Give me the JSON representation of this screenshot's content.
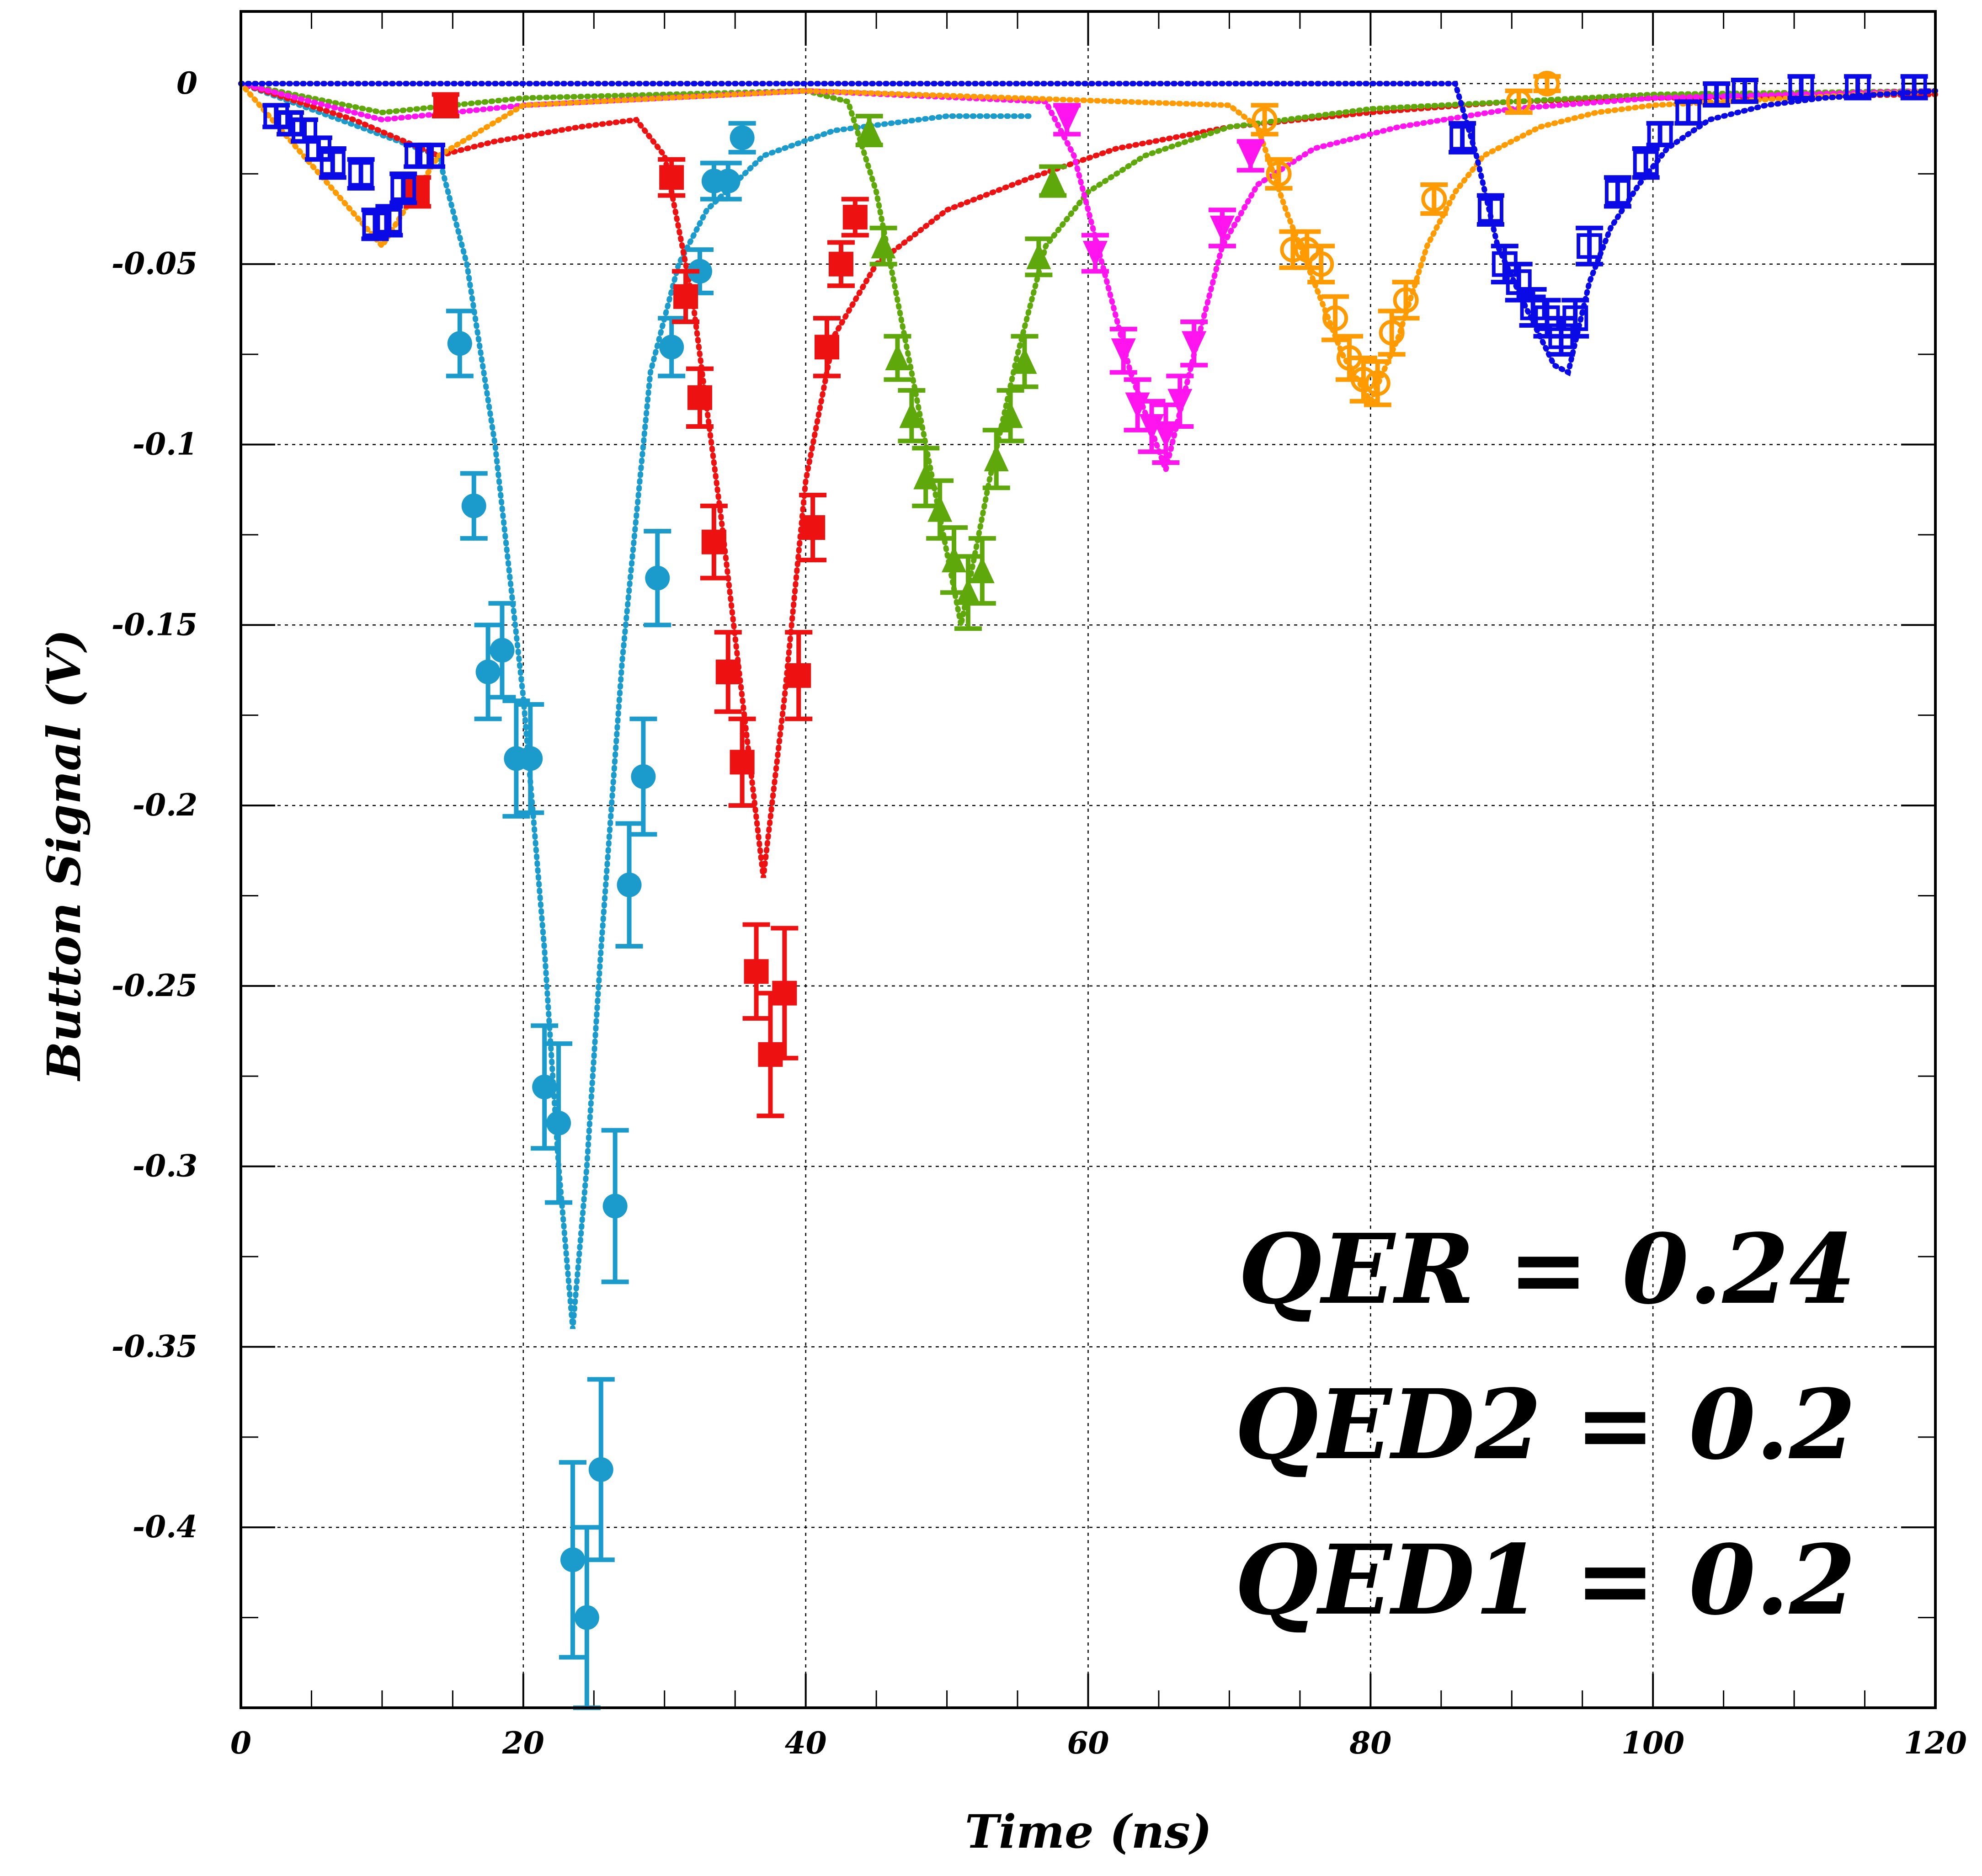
{
  "chart_data": {
    "type": "scatter",
    "title": "",
    "xlabel": "Time (ns)",
    "ylabel": "Button Signal (V)",
    "xlim": [
      0,
      120
    ],
    "ylim": [
      -0.45,
      0.02
    ],
    "x_ticks": [
      0,
      20,
      40,
      60,
      80,
      100,
      120
    ],
    "x_tick_labels": [
      "0",
      "20",
      "40",
      "60",
      "80",
      "100",
      "120"
    ],
    "y_ticks": [
      0,
      -0.05,
      -0.1,
      -0.15,
      -0.2,
      -0.25,
      -0.3,
      -0.35,
      -0.4
    ],
    "y_tick_labels": [
      "0",
      "-0.05",
      "-0.1",
      "-0.15",
      "-0.2",
      "-0.25",
      "-0.3",
      "-0.35",
      "-0.4"
    ],
    "grid": true,
    "annotations": [
      "QER = 0.24",
      "QED2 = 0.2",
      "QED1 = 0.2"
    ],
    "series": [
      {
        "marker": "filled-circle",
        "color": "#1b9bcb",
        "points": [
          {
            "x": 15.5,
            "y": -0.072,
            "err": 0.009
          },
          {
            "x": 16.5,
            "y": -0.117,
            "err": 0.009
          },
          {
            "x": 17.5,
            "y": -0.163,
            "err": 0.013
          },
          {
            "x": 18.5,
            "y": -0.157,
            "err": 0.013
          },
          {
            "x": 19.5,
            "y": -0.187,
            "err": 0.016
          },
          {
            "x": 20.5,
            "y": -0.187,
            "err": 0.015
          },
          {
            "x": 21.5,
            "y": -0.278,
            "err": 0.017
          },
          {
            "x": 22.5,
            "y": -0.288,
            "err": 0.022
          },
          {
            "x": 23.5,
            "y": -0.409,
            "err": 0.027
          },
          {
            "x": 24.5,
            "y": -0.425,
            "err": 0.025
          },
          {
            "x": 25.5,
            "y": -0.384,
            "err": 0.025
          },
          {
            "x": 26.5,
            "y": -0.311,
            "err": 0.021
          },
          {
            "x": 27.5,
            "y": -0.222,
            "err": 0.017
          },
          {
            "x": 28.5,
            "y": -0.192,
            "err": 0.016
          },
          {
            "x": 29.5,
            "y": -0.137,
            "err": 0.013
          },
          {
            "x": 30.5,
            "y": -0.073,
            "err": 0.008
          },
          {
            "x": 32.5,
            "y": -0.052,
            "err": 0.006
          },
          {
            "x": 33.5,
            "y": -0.027,
            "err": 0.005
          },
          {
            "x": 34.5,
            "y": -0.027,
            "err": 0.005
          },
          {
            "x": 35.5,
            "y": -0.015,
            "err": 0.004
          }
        ],
        "fit": [
          [
            0,
            0
          ],
          [
            14,
            -0.02
          ],
          [
            16,
            -0.05
          ],
          [
            18,
            -0.1
          ],
          [
            20,
            -0.17
          ],
          [
            21.5,
            -0.24
          ],
          [
            22.5,
            -0.3
          ],
          [
            23.5,
            -0.345
          ],
          [
            24.5,
            -0.3
          ],
          [
            25.5,
            -0.24
          ],
          [
            27,
            -0.16
          ],
          [
            29,
            -0.08
          ],
          [
            31,
            -0.05
          ],
          [
            33,
            -0.035
          ],
          [
            37,
            -0.02
          ],
          [
            42,
            -0.013
          ],
          [
            50,
            -0.009
          ],
          [
            56,
            -0.009
          ]
        ]
      },
      {
        "marker": "filled-square",
        "color": "#ee1111",
        "points": [
          {
            "x": 12.5,
            "y": -0.03,
            "err": 0.004
          },
          {
            "x": 14.5,
            "y": -0.006,
            "err": 0.003
          },
          {
            "x": 30.5,
            "y": -0.026,
            "err": 0.005
          },
          {
            "x": 31.5,
            "y": -0.059,
            "err": 0.007
          },
          {
            "x": 32.5,
            "y": -0.087,
            "err": 0.008
          },
          {
            "x": 33.5,
            "y": -0.127,
            "err": 0.01
          },
          {
            "x": 34.5,
            "y": -0.163,
            "err": 0.011
          },
          {
            "x": 35.5,
            "y": -0.188,
            "err": 0.012
          },
          {
            "x": 36.5,
            "y": -0.246,
            "err": 0.013
          },
          {
            "x": 37.5,
            "y": -0.269,
            "err": 0.017
          },
          {
            "x": 38.5,
            "y": -0.252,
            "err": 0.018
          },
          {
            "x": 39.5,
            "y": -0.164,
            "err": 0.012
          },
          {
            "x": 40.5,
            "y": -0.123,
            "err": 0.009
          },
          {
            "x": 41.5,
            "y": -0.073,
            "err": 0.008
          },
          {
            "x": 42.5,
            "y": -0.05,
            "err": 0.006
          },
          {
            "x": 43.5,
            "y": -0.037,
            "err": 0.005
          }
        ],
        "fit": [
          [
            0,
            0
          ],
          [
            8,
            -0.01
          ],
          [
            14,
            -0.02
          ],
          [
            18,
            -0.016
          ],
          [
            24,
            -0.012
          ],
          [
            28,
            -0.01
          ],
          [
            30,
            -0.02
          ],
          [
            32,
            -0.06
          ],
          [
            34,
            -0.12
          ],
          [
            35.5,
            -0.17
          ],
          [
            37,
            -0.22
          ],
          [
            38.5,
            -0.17
          ],
          [
            40,
            -0.11
          ],
          [
            42,
            -0.07
          ],
          [
            45,
            -0.05
          ],
          [
            50,
            -0.035
          ],
          [
            56,
            -0.026
          ],
          [
            62,
            -0.018
          ],
          [
            70,
            -0.012
          ],
          [
            80,
            -0.008
          ],
          [
            90,
            -0.005
          ],
          [
            100,
            -0.004
          ],
          [
            120,
            -0.003
          ]
        ]
      },
      {
        "marker": "filled-triangle-up",
        "color": "#5fa80c",
        "points": [
          {
            "x": 44.5,
            "y": -0.013,
            "err": 0.004
          },
          {
            "x": 45.5,
            "y": -0.045,
            "err": 0.005
          },
          {
            "x": 46.5,
            "y": -0.076,
            "err": 0.006
          },
          {
            "x": 47.5,
            "y": -0.092,
            "err": 0.007
          },
          {
            "x": 48.5,
            "y": -0.109,
            "err": 0.008
          },
          {
            "x": 49.5,
            "y": -0.118,
            "err": 0.008
          },
          {
            "x": 50.5,
            "y": -0.132,
            "err": 0.009
          },
          {
            "x": 51.5,
            "y": -0.141,
            "err": 0.01
          },
          {
            "x": 52.5,
            "y": -0.135,
            "err": 0.009
          },
          {
            "x": 53.5,
            "y": -0.104,
            "err": 0.008
          },
          {
            "x": 54.5,
            "y": -0.092,
            "err": 0.007
          },
          {
            "x": 55.5,
            "y": -0.077,
            "err": 0.007
          },
          {
            "x": 56.5,
            "y": -0.048,
            "err": 0.005
          },
          {
            "x": 57.5,
            "y": -0.027,
            "err": 0.004
          }
        ],
        "fit": [
          [
            0,
            0
          ],
          [
            10,
            -0.008
          ],
          [
            20,
            -0.004
          ],
          [
            40,
            -0.002
          ],
          [
            43,
            -0.005
          ],
          [
            45,
            -0.03
          ],
          [
            47,
            -0.07
          ],
          [
            49,
            -0.11
          ],
          [
            51,
            -0.15
          ],
          [
            53,
            -0.11
          ],
          [
            55,
            -0.075
          ],
          [
            57,
            -0.045
          ],
          [
            60,
            -0.03
          ],
          [
            64,
            -0.02
          ],
          [
            70,
            -0.012
          ],
          [
            80,
            -0.007
          ],
          [
            90,
            -0.005
          ],
          [
            100,
            -0.003
          ],
          [
            120,
            -0.002
          ]
        ]
      },
      {
        "marker": "filled-triangle-down",
        "color": "#ff14f0",
        "points": [
          {
            "x": 58.5,
            "y": -0.01,
            "err": 0.004
          },
          {
            "x": 60.5,
            "y": -0.047,
            "err": 0.005
          },
          {
            "x": 62.5,
            "y": -0.074,
            "err": 0.006
          },
          {
            "x": 63.5,
            "y": -0.089,
            "err": 0.007
          },
          {
            "x": 64.5,
            "y": -0.095,
            "err": 0.007
          },
          {
            "x": 65.5,
            "y": -0.097,
            "err": 0.008
          },
          {
            "x": 66.5,
            "y": -0.088,
            "err": 0.007
          },
          {
            "x": 67.5,
            "y": -0.072,
            "err": 0.006
          },
          {
            "x": 69.5,
            "y": -0.04,
            "err": 0.005
          },
          {
            "x": 71.5,
            "y": -0.02,
            "err": 0.004
          }
        ],
        "fit": [
          [
            0,
            0
          ],
          [
            10,
            -0.01
          ],
          [
            20,
            -0.006
          ],
          [
            40,
            -0.002
          ],
          [
            57,
            -0.005
          ],
          [
            59,
            -0.02
          ],
          [
            61,
            -0.05
          ],
          [
            63,
            -0.08
          ],
          [
            65.5,
            -0.107
          ],
          [
            67.5,
            -0.075
          ],
          [
            69.5,
            -0.045
          ],
          [
            72,
            -0.028
          ],
          [
            76,
            -0.018
          ],
          [
            82,
            -0.012
          ],
          [
            90,
            -0.007
          ],
          [
            100,
            -0.004
          ],
          [
            120,
            -0.002
          ]
        ]
      },
      {
        "marker": "open-circle",
        "color": "#ff9a00",
        "points": [
          {
            "x": 72.5,
            "y": -0.01,
            "err": 0.004
          },
          {
            "x": 73.5,
            "y": -0.025,
            "err": 0.004
          },
          {
            "x": 74.5,
            "y": -0.046,
            "err": 0.005
          },
          {
            "x": 75.5,
            "y": -0.046,
            "err": 0.005
          },
          {
            "x": 76.5,
            "y": -0.05,
            "err": 0.005
          },
          {
            "x": 77.5,
            "y": -0.065,
            "err": 0.006
          },
          {
            "x": 78.5,
            "y": -0.076,
            "err": 0.006
          },
          {
            "x": 79.5,
            "y": -0.082,
            "err": 0.006
          },
          {
            "x": 80.5,
            "y": -0.083,
            "err": 0.006
          },
          {
            "x": 81.5,
            "y": -0.069,
            "err": 0.006
          },
          {
            "x": 82.5,
            "y": -0.06,
            "err": 0.005
          },
          {
            "x": 84.5,
            "y": -0.032,
            "err": 0.004
          },
          {
            "x": 90.5,
            "y": -0.005,
            "err": 0.003
          },
          {
            "x": 92.5,
            "y": 0.0,
            "err": 0.002
          }
        ],
        "fit": [
          [
            0,
            0
          ],
          [
            10,
            -0.045
          ],
          [
            14,
            -0.02
          ],
          [
            20,
            -0.006
          ],
          [
            40,
            -0.002
          ],
          [
            70,
            -0.006
          ],
          [
            72,
            -0.012
          ],
          [
            74,
            -0.035
          ],
          [
            76,
            -0.055
          ],
          [
            78,
            -0.075
          ],
          [
            80,
            -0.088
          ],
          [
            82,
            -0.07
          ],
          [
            84,
            -0.045
          ],
          [
            86,
            -0.03
          ],
          [
            88,
            -0.02
          ],
          [
            92,
            -0.012
          ],
          [
            96,
            -0.008
          ],
          [
            100,
            -0.006
          ],
          [
            120,
            -0.002
          ]
        ]
      },
      {
        "marker": "open-square",
        "color": "#0a0ae6",
        "points": [
          {
            "x": 2.5,
            "y": -0.009,
            "err": 0.003
          },
          {
            "x": 3.5,
            "y": -0.011,
            "err": 0.003
          },
          {
            "x": 4.5,
            "y": -0.013,
            "err": 0.003
          },
          {
            "x": 5.5,
            "y": -0.018,
            "err": 0.003
          },
          {
            "x": 6.5,
            "y": -0.022,
            "err": 0.004
          },
          {
            "x": 8.5,
            "y": -0.025,
            "err": 0.004
          },
          {
            "x": 9.5,
            "y": -0.039,
            "err": 0.004
          },
          {
            "x": 10.5,
            "y": -0.038,
            "err": 0.004
          },
          {
            "x": 11.5,
            "y": -0.029,
            "err": 0.004
          },
          {
            "x": 12.5,
            "y": -0.02,
            "err": 0.003
          },
          {
            "x": 13.5,
            "y": -0.02,
            "err": 0.003
          },
          {
            "x": 86.5,
            "y": -0.015,
            "err": 0.004
          },
          {
            "x": 88.5,
            "y": -0.035,
            "err": 0.004
          },
          {
            "x": 89.5,
            "y": -0.05,
            "err": 0.005
          },
          {
            "x": 90.5,
            "y": -0.055,
            "err": 0.005
          },
          {
            "x": 91.5,
            "y": -0.062,
            "err": 0.005
          },
          {
            "x": 92.5,
            "y": -0.065,
            "err": 0.005
          },
          {
            "x": 93.5,
            "y": -0.07,
            "err": 0.005
          },
          {
            "x": 94.5,
            "y": -0.065,
            "err": 0.005
          },
          {
            "x": 95.5,
            "y": -0.045,
            "err": 0.005
          },
          {
            "x": 97.5,
            "y": -0.03,
            "err": 0.004
          },
          {
            "x": 99.5,
            "y": -0.022,
            "err": 0.004
          },
          {
            "x": 100.5,
            "y": -0.014,
            "err": 0.003
          },
          {
            "x": 102.5,
            "y": -0.008,
            "err": 0.003
          },
          {
            "x": 104.5,
            "y": -0.003,
            "err": 0.003
          },
          {
            "x": 106.5,
            "y": -0.002,
            "err": 0.003
          },
          {
            "x": 110.5,
            "y": -0.001,
            "err": 0.003
          },
          {
            "x": 114.5,
            "y": -0.001,
            "err": 0.003
          },
          {
            "x": 118.5,
            "y": -0.001,
            "err": 0.003
          }
        ],
        "fit": [
          [
            0,
            0
          ],
          [
            4,
            0
          ],
          [
            20,
            0
          ],
          [
            30,
            0
          ],
          [
            40,
            0
          ],
          [
            60,
            0
          ],
          [
            80,
            0
          ],
          [
            86,
            0
          ],
          [
            87.5,
            -0.02
          ],
          [
            89,
            -0.045
          ],
          [
            91,
            -0.062
          ],
          [
            93,
            -0.078
          ],
          [
            94,
            -0.08
          ],
          [
            95.5,
            -0.055
          ],
          [
            97,
            -0.04
          ],
          [
            99,
            -0.028
          ],
          [
            101,
            -0.018
          ],
          [
            104,
            -0.01
          ],
          [
            108,
            -0.006
          ],
          [
            112,
            -0.004
          ],
          [
            120,
            -0.002
          ]
        ]
      }
    ]
  }
}
